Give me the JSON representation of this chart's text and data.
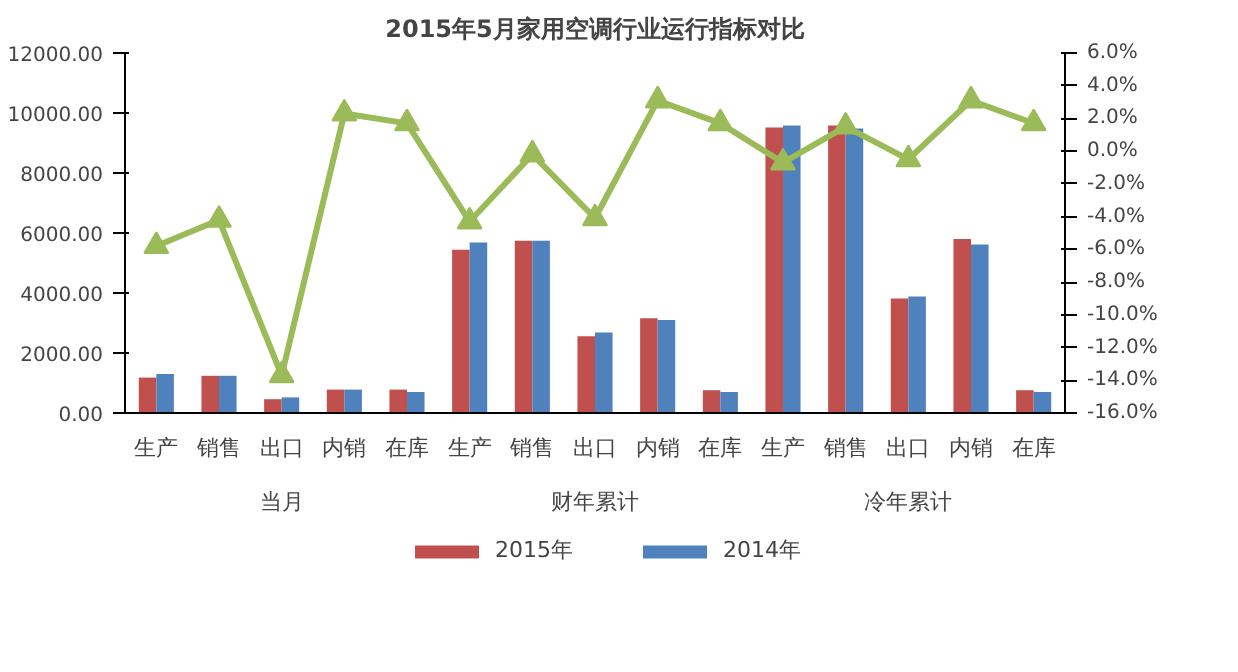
{
  "chart_data": {
    "type": "bar",
    "title": "2015年5月家用空调行业运行指标对比",
    "categories": [
      "生产",
      "销售",
      "出口",
      "内销",
      "在库",
      "生产",
      "销售",
      "出口",
      "内销",
      "在库",
      "生产",
      "销售",
      "出口",
      "内销",
      "在库"
    ],
    "annotations": [
      "当月",
      "财年累计",
      "冷年累计"
    ],
    "series": [
      {
        "name": "2015年",
        "color": "#c0504d",
        "values": [
          1180,
          1240,
          460,
          780,
          780,
          5440,
          5740,
          2560,
          3160,
          760,
          9520,
          9580,
          3820,
          5800,
          760
        ]
      },
      {
        "name": "2014年",
        "color": "#4f81bd",
        "values": [
          1300,
          1240,
          520,
          780,
          700,
          5680,
          5740,
          2680,
          3100,
          700,
          9580,
          9480,
          3880,
          5620,
          700
        ]
      },
      {
        "type": "line",
        "axis": "y2",
        "color": "#9bbb59",
        "marker": "triangle",
        "values": [
          -5.8,
          -4.2,
          -13.7,
          2.3,
          1.7,
          -4.3,
          -0.2,
          -4.1,
          3.1,
          1.7,
          -0.7,
          1.5,
          -0.5,
          3.1,
          1.7
        ]
      }
    ],
    "ylim": [
      0,
      12000
    ],
    "yticks": [
      {
        "value": 0,
        "label": "0.00"
      },
      {
        "value": 2000,
        "label": "2000.00"
      },
      {
        "value": 4000,
        "label": "4000.00"
      },
      {
        "value": 6000,
        "label": "6000.00"
      },
      {
        "value": 8000,
        "label": "8000.00"
      },
      {
        "value": 10000,
        "label": "10000.00"
      },
      {
        "value": 12000,
        "label": "12000.00"
      }
    ],
    "y2lim": [
      -16,
      6
    ],
    "y2ticks": [
      {
        "value": 6,
        "label": "6.0%"
      },
      {
        "value": 4,
        "label": "4.0%"
      },
      {
        "value": 2,
        "label": "2.0%"
      },
      {
        "value": 0,
        "label": "0.0%"
      },
      {
        "value": -2,
        "label": "-2.0%"
      },
      {
        "value": -4,
        "label": "-4.0%"
      },
      {
        "value": -6,
        "label": "-6.0%"
      },
      {
        "value": -8,
        "label": "-8.0%"
      },
      {
        "value": -10,
        "label": "-10.0%"
      },
      {
        "value": -12,
        "label": "-12.0%"
      },
      {
        "value": -14,
        "label": "-14.0%"
      },
      {
        "value": -16,
        "label": "-16.0%"
      }
    ],
    "grid": false,
    "legend": "bottom"
  }
}
